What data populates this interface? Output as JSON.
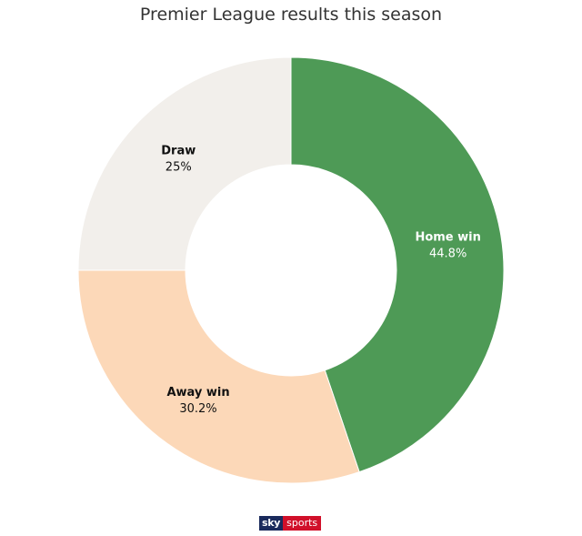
{
  "chart_data": {
    "type": "pie",
    "title": "Premier League results this season",
    "donut": true,
    "slices": [
      {
        "label": "Home win",
        "value": 44.8,
        "value_label": "44.8%",
        "color": "#4e9a56",
        "text_color": "#ffffff"
      },
      {
        "label": "Away win",
        "value": 30.2,
        "value_label": "30.2%",
        "color": "#fcd8b8",
        "text_color": "#111111"
      },
      {
        "label": "Draw",
        "value": 25,
        "value_label": "25%",
        "color": "#f2efeb",
        "text_color": "#111111"
      }
    ]
  },
  "branding": {
    "logo_sky": "sky",
    "logo_sports": "sports"
  }
}
